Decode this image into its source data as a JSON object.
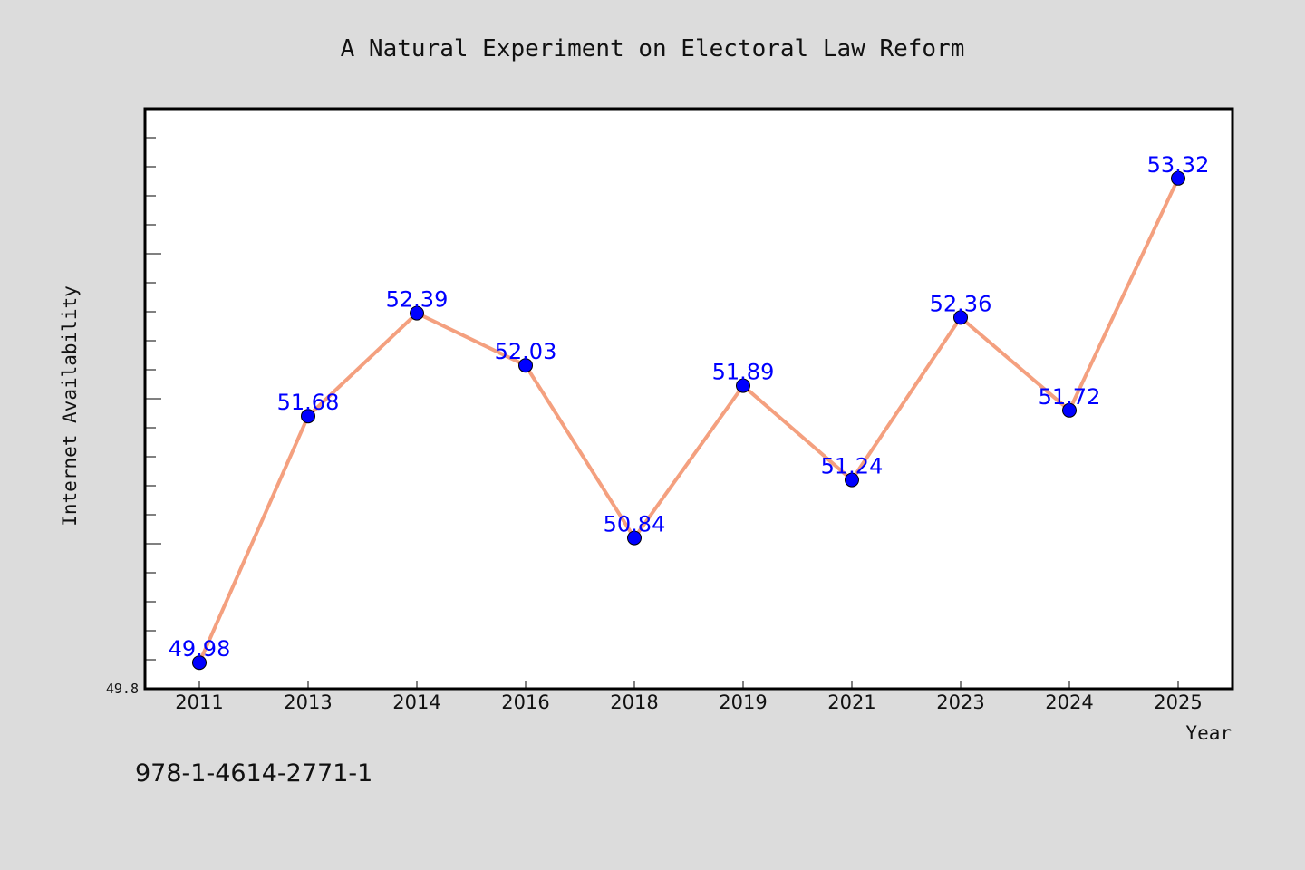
{
  "chart_data": {
    "type": "line",
    "title": "A Natural Experiment on Electoral Law Reform",
    "xlabel": "Year",
    "ylabel": "Internet Availability",
    "categories": [
      "2011",
      "2013",
      "2014",
      "2016",
      "2018",
      "2019",
      "2021",
      "2023",
      "2024",
      "2025"
    ],
    "series": [
      {
        "values": [
          49.98,
          51.68,
          52.39,
          52.03,
          50.84,
          51.89,
          51.24,
          52.36,
          51.72,
          53.32
        ],
        "labels": [
          "49.98",
          "51.68",
          "52.39",
          "52.03",
          "50.84",
          "51.89",
          "51.24",
          "52.36",
          "51.72",
          "53.32"
        ]
      }
    ],
    "ylim": [
      49.8,
      53.8
    ],
    "yticks_labeled": [
      "49.8"
    ],
    "grid": false,
    "legend": "none",
    "colors": {
      "line": "#f4a07f",
      "marker": "#0000ff",
      "marker_edge": "#000000",
      "label": "#0000ff",
      "plot_bg": "#ffffff",
      "figure_bg": "#dcdcdc"
    }
  },
  "footer": {
    "isbn": "978-1-4614-2771-1"
  }
}
